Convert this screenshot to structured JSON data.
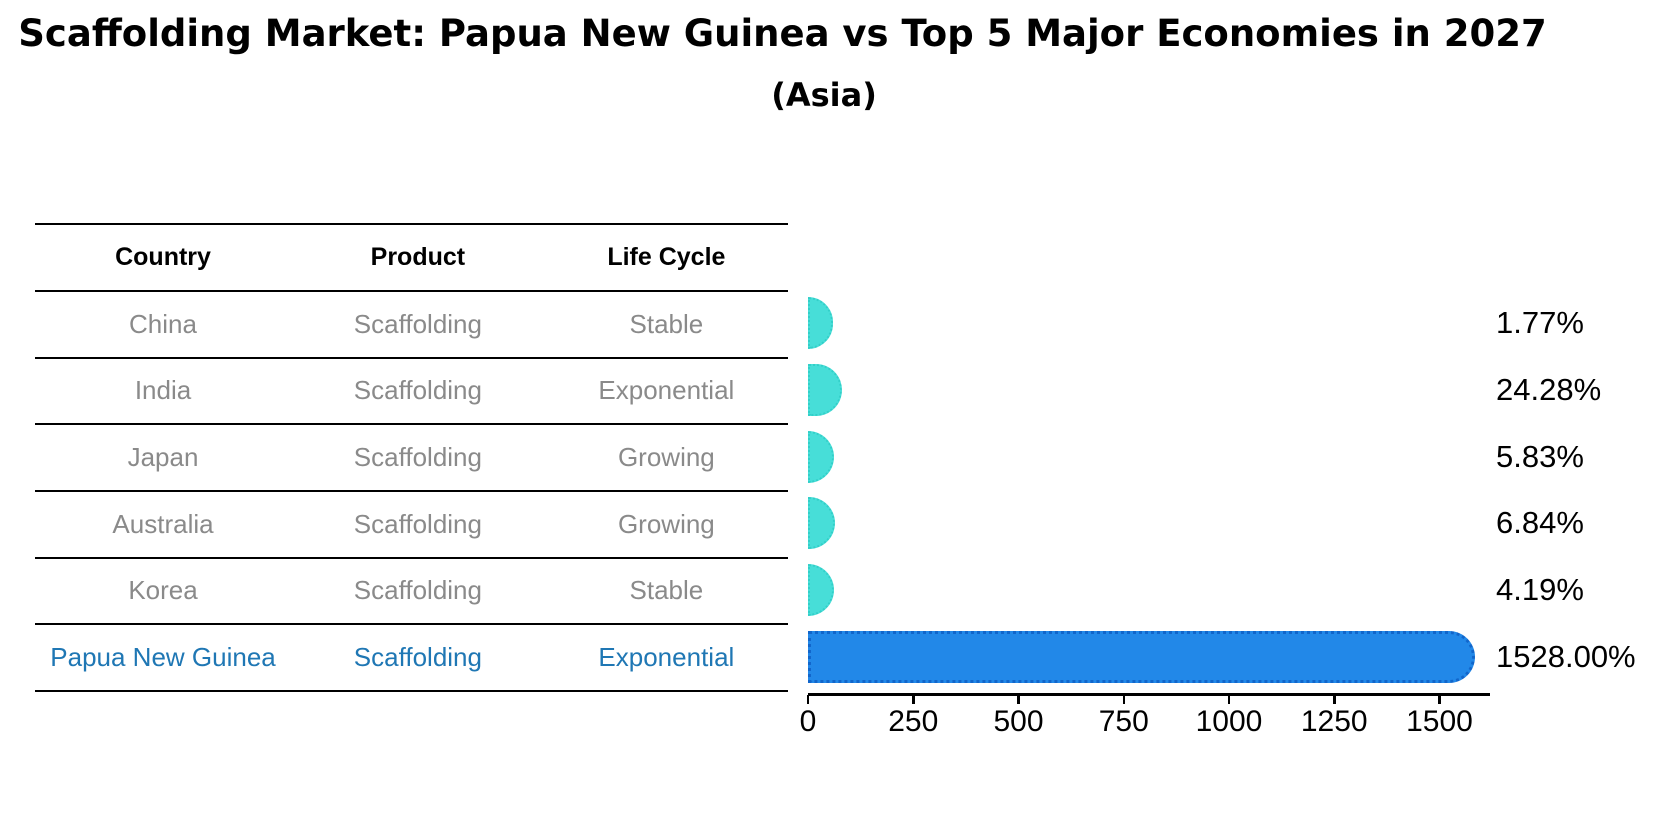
{
  "title": "Scaffolding Market: Papua New Guinea vs Top 5 Major Economies in 2027",
  "subtitle": "(Asia)",
  "table": {
    "columns": [
      "Country",
      "Product",
      "Life Cycle"
    ],
    "rows": [
      {
        "country": "China",
        "product": "Scaffolding",
        "life_cycle": "Stable",
        "highlight": false
      },
      {
        "country": "India",
        "product": "Scaffolding",
        "life_cycle": "Exponential",
        "highlight": false
      },
      {
        "country": "Japan",
        "product": "Scaffolding",
        "life_cycle": "Growing",
        "highlight": false
      },
      {
        "country": "Australia",
        "product": "Scaffolding",
        "life_cycle": "Growing",
        "highlight": false
      },
      {
        "country": "Korea",
        "product": "Scaffolding",
        "life_cycle": "Stable",
        "highlight": false
      },
      {
        "country": "Papua New Guinea",
        "product": "Scaffolding",
        "life_cycle": "Exponential",
        "highlight": true
      }
    ]
  },
  "chart_data": {
    "type": "bar",
    "orientation": "horizontal",
    "title": "Scaffolding Market: Papua New Guinea vs Top 5 Major Economies in 2027 (Asia)",
    "categories": [
      "China",
      "India",
      "Japan",
      "Australia",
      "Korea",
      "Papua New Guinea"
    ],
    "values": [
      1.77,
      24.28,
      5.83,
      6.84,
      4.19,
      1528.0
    ],
    "value_labels": [
      "1.77%",
      "24.28%",
      "5.83%",
      "6.84%",
      "4.19%",
      "1528.00%"
    ],
    "xlabel": "",
    "ylabel": "",
    "xlim": [
      0,
      1620
    ],
    "x_ticks": [
      "0",
      "250",
      "500",
      "750",
      "1000",
      "1250",
      "1500"
    ],
    "grid": false,
    "legend": false,
    "colors": {
      "default_bar": "#47ded8",
      "highlight_bar": "#2288e8",
      "highlight_bar_edge": "#1166cb",
      "highlight_text": "#1f77b4",
      "row_text": "#8a8a8a",
      "header_text": "#000000",
      "axis": "#000000"
    }
  }
}
